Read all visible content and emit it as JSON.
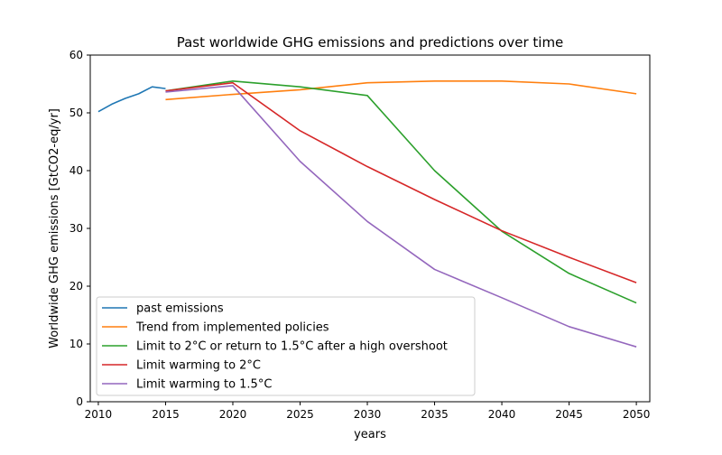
{
  "chart_data": {
    "type": "line",
    "title": "Past worldwide GHG emissions and predictions over time",
    "xlabel": "years",
    "ylabel": "Worldwide GHG emissions [GtCO2-eq/yr]",
    "xlim": [
      2009.4,
      2051
    ],
    "ylim": [
      0,
      60
    ],
    "xticks": [
      2010,
      2015,
      2020,
      2025,
      2030,
      2035,
      2040,
      2045,
      2050
    ],
    "yticks": [
      0,
      10,
      20,
      30,
      40,
      50,
      60
    ],
    "grid": false,
    "legend_position": "lower-left",
    "series": [
      {
        "name": "past emissions",
        "color": "#1f77b4",
        "points": [
          [
            2010,
            50.2
          ],
          [
            2011,
            51.5
          ],
          [
            2012,
            52.5
          ],
          [
            2013,
            53.3
          ],
          [
            2014,
            54.5
          ],
          [
            2015,
            54.2
          ]
        ]
      },
      {
        "name": "Trend from implemented policies",
        "color": "#ff7f0e",
        "points": [
          [
            2015,
            52.3
          ],
          [
            2020,
            53.2
          ],
          [
            2025,
            54.0
          ],
          [
            2030,
            55.2
          ],
          [
            2035,
            55.5
          ],
          [
            2040,
            55.5
          ],
          [
            2045,
            55.0
          ],
          [
            2050,
            53.3
          ]
        ]
      },
      {
        "name": "Limit to 2°C or return to 1.5°C after a high overshoot",
        "color": "#2ca02c",
        "points": [
          [
            2015,
            53.8
          ],
          [
            2020,
            55.5
          ],
          [
            2025,
            54.5
          ],
          [
            2030,
            53.0
          ],
          [
            2035,
            40.0
          ],
          [
            2040,
            29.5
          ],
          [
            2045,
            22.2
          ],
          [
            2050,
            17.1
          ]
        ]
      },
      {
        "name": "Limit warming to 2°C",
        "color": "#d62728",
        "points": [
          [
            2015,
            53.8
          ],
          [
            2020,
            55.2
          ],
          [
            2025,
            46.9
          ],
          [
            2030,
            40.7
          ],
          [
            2035,
            35.0
          ],
          [
            2040,
            29.6
          ],
          [
            2045,
            25.0
          ],
          [
            2050,
            20.6
          ]
        ]
      },
      {
        "name": "Limit warming to 1.5°C",
        "color": "#9467bd",
        "points": [
          [
            2015,
            53.6
          ],
          [
            2020,
            54.7
          ],
          [
            2025,
            41.6
          ],
          [
            2030,
            31.2
          ],
          [
            2035,
            22.9
          ],
          [
            2040,
            18.0
          ],
          [
            2045,
            13.0
          ],
          [
            2050,
            9.5
          ]
        ]
      }
    ]
  }
}
